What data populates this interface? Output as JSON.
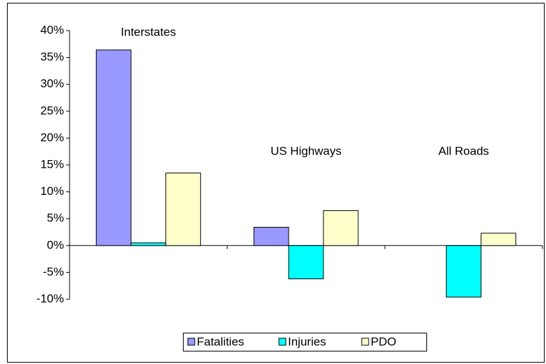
{
  "chart_data": {
    "type": "bar",
    "categories": [
      "Interstates",
      "US Highways",
      "All Roads"
    ],
    "series": [
      {
        "name": "Fatalities",
        "color": "#9999ff",
        "values": [
          36.4,
          3.4,
          0
        ]
      },
      {
        "name": "Injuries",
        "color": "#00ffff",
        "values": [
          0.5,
          -6.2,
          -9.6
        ]
      },
      {
        "name": "PDO",
        "color": "#ffffcc",
        "values": [
          13.5,
          6.5,
          2.3
        ]
      }
    ],
    "ylim": [
      -10,
      40
    ],
    "yticks": [
      {
        "value": -10,
        "label": "-10%"
      },
      {
        "value": -5,
        "label": "-5%"
      },
      {
        "value": 0,
        "label": "0%"
      },
      {
        "value": 5,
        "label": "5%"
      },
      {
        "value": 10,
        "label": "10%"
      },
      {
        "value": 15,
        "label": "15%"
      },
      {
        "value": 20,
        "label": "20%"
      },
      {
        "value": 25,
        "label": "25%"
      },
      {
        "value": 30,
        "label": "30%"
      },
      {
        "value": 35,
        "label": "35%"
      },
      {
        "value": 40,
        "label": "40%"
      }
    ],
    "legend": "bottom"
  }
}
